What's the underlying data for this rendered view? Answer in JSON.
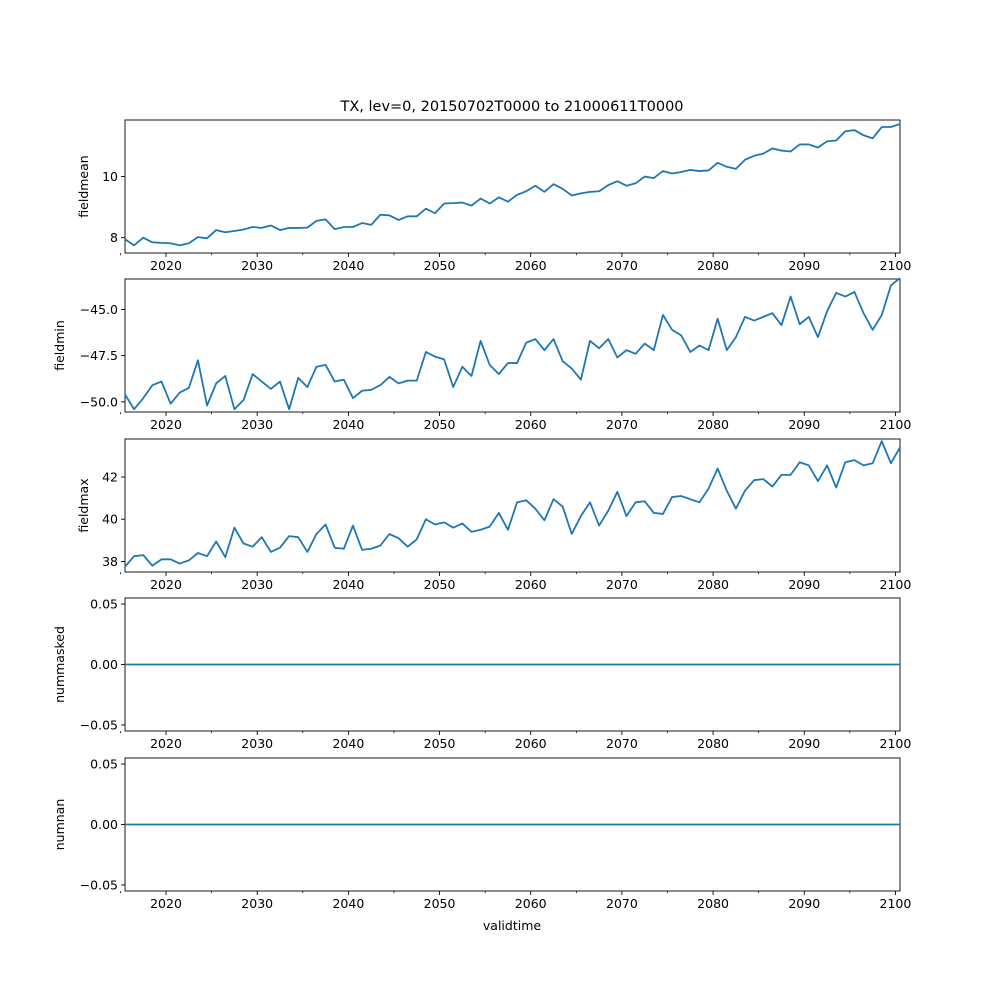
{
  "chart_data": {
    "type": "line",
    "title": "TX, lev=0, 20150702T0000 to 21000611T0000",
    "xlabel": "validtime",
    "xlim": [
      2015.5,
      2100.5
    ],
    "x_ticks": [
      2020,
      2030,
      2040,
      2050,
      2060,
      2070,
      2080,
      2090,
      2100
    ],
    "x_tick_labels": [
      "2020",
      "2030",
      "2040",
      "2050",
      "2060",
      "2070",
      "2080",
      "2090",
      "2100"
    ],
    "line_color": "#1f77b4",
    "x": [
      2015.5,
      2016.5,
      2017.5,
      2018.5,
      2019.5,
      2020.5,
      2021.5,
      2022.5,
      2023.5,
      2024.5,
      2025.5,
      2026.5,
      2027.5,
      2028.5,
      2029.5,
      2030.5,
      2031.5,
      2032.5,
      2033.5,
      2034.5,
      2035.5,
      2036.5,
      2037.5,
      2038.5,
      2039.5,
      2040.5,
      2041.5,
      2042.5,
      2043.5,
      2044.5,
      2045.5,
      2046.5,
      2047.5,
      2048.5,
      2049.5,
      2050.5,
      2051.5,
      2052.5,
      2053.5,
      2054.5,
      2055.5,
      2056.5,
      2057.5,
      2058.5,
      2059.5,
      2060.5,
      2061.5,
      2062.5,
      2063.5,
      2064.5,
      2065.5,
      2066.5,
      2067.5,
      2068.5,
      2069.5,
      2070.5,
      2071.5,
      2072.5,
      2073.5,
      2074.5,
      2075.5,
      2076.5,
      2077.5,
      2078.5,
      2079.5,
      2080.5,
      2081.5,
      2082.5,
      2083.5,
      2084.5,
      2085.5,
      2086.5,
      2087.5,
      2088.5,
      2089.5,
      2090.5,
      2091.5,
      2092.5,
      2093.5,
      2094.5,
      2095.5,
      2096.5,
      2097.5,
      2098.5,
      2099.5,
      2100.5
    ],
    "panels": [
      {
        "name": "fieldmean",
        "ylabel": "fieldmean",
        "ylim": [
          7.5,
          11.85
        ],
        "y_ticks": [
          8,
          10
        ],
        "y_tick_labels": [
          "8",
          "10"
        ],
        "values": [
          7.95,
          7.75,
          8.0,
          7.85,
          7.83,
          7.82,
          7.75,
          7.82,
          8.02,
          7.98,
          8.25,
          8.18,
          8.22,
          8.27,
          8.35,
          8.32,
          8.4,
          8.25,
          8.32,
          8.32,
          8.33,
          8.55,
          8.6,
          8.28,
          8.35,
          8.35,
          8.48,
          8.42,
          8.75,
          8.73,
          8.58,
          8.7,
          8.7,
          8.95,
          8.8,
          9.12,
          9.13,
          9.15,
          9.05,
          9.28,
          9.12,
          9.32,
          9.18,
          9.4,
          9.52,
          9.7,
          9.5,
          9.75,
          9.6,
          9.38,
          9.45,
          9.5,
          9.52,
          9.72,
          9.85,
          9.7,
          9.78,
          10.0,
          9.95,
          10.18,
          10.1,
          10.15,
          10.22,
          10.18,
          10.2,
          10.45,
          10.32,
          10.25,
          10.55,
          10.68,
          10.75,
          10.92,
          10.85,
          10.82,
          11.05,
          11.05,
          10.95,
          11.15,
          11.18,
          11.48,
          11.52,
          11.35,
          11.25,
          11.62,
          11.62,
          11.72
        ]
      },
      {
        "name": "fieldmin",
        "ylabel": "fieldmin",
        "ylim": [
          -50.55,
          -43.35
        ],
        "y_ticks": [
          -50.0,
          -47.5,
          -45.0
        ],
        "y_tick_labels": [
          "−50.0",
          "−47.5",
          "−45.0"
        ],
        "values": [
          -49.6,
          -50.4,
          -49.8,
          -49.1,
          -48.9,
          -50.1,
          -49.5,
          -49.25,
          -47.75,
          -50.2,
          -49.0,
          -48.6,
          -50.4,
          -49.9,
          -48.5,
          -48.9,
          -49.3,
          -48.9,
          -50.4,
          -48.7,
          -49.2,
          -48.1,
          -48.0,
          -48.9,
          -48.8,
          -49.8,
          -49.4,
          -49.35,
          -49.1,
          -48.65,
          -49.0,
          -48.85,
          -48.85,
          -47.3,
          -47.55,
          -47.7,
          -49.2,
          -48.1,
          -48.6,
          -46.7,
          -48.0,
          -48.5,
          -47.9,
          -47.9,
          -46.8,
          -46.6,
          -47.2,
          -46.6,
          -47.8,
          -48.2,
          -48.8,
          -46.7,
          -47.1,
          -46.6,
          -47.6,
          -47.2,
          -47.4,
          -46.85,
          -47.2,
          -45.3,
          -46.1,
          -46.4,
          -47.3,
          -46.95,
          -47.2,
          -45.5,
          -47.2,
          -46.5,
          -45.4,
          -45.6,
          -45.4,
          -45.2,
          -45.85,
          -44.3,
          -45.8,
          -45.4,
          -46.5,
          -45.1,
          -44.1,
          -44.3,
          -44.05,
          -45.2,
          -46.1,
          -45.3,
          -43.7,
          -43.3
        ]
      },
      {
        "name": "fieldmax",
        "ylabel": "fieldmax",
        "ylim": [
          37.5,
          43.8
        ],
        "y_ticks": [
          38,
          40,
          42
        ],
        "y_tick_labels": [
          "38",
          "40",
          "42"
        ],
        "values": [
          37.75,
          38.25,
          38.3,
          37.8,
          38.1,
          38.1,
          37.9,
          38.05,
          38.4,
          38.25,
          38.95,
          38.2,
          39.6,
          38.85,
          38.7,
          39.15,
          38.45,
          38.65,
          39.2,
          39.15,
          38.45,
          39.3,
          39.75,
          38.65,
          38.6,
          39.7,
          38.55,
          38.6,
          38.75,
          39.3,
          39.1,
          38.7,
          39.05,
          40.0,
          39.75,
          39.85,
          39.6,
          39.8,
          39.4,
          39.5,
          39.65,
          40.3,
          39.5,
          40.8,
          40.9,
          40.5,
          39.95,
          40.95,
          40.6,
          39.3,
          40.15,
          40.8,
          39.7,
          40.4,
          41.3,
          40.15,
          40.8,
          40.85,
          40.3,
          40.25,
          41.05,
          41.1,
          40.95,
          40.8,
          41.45,
          42.4,
          41.35,
          40.5,
          41.35,
          41.85,
          41.9,
          41.55,
          42.1,
          42.1,
          42.7,
          42.55,
          41.8,
          42.55,
          41.5,
          42.7,
          42.8,
          42.55,
          42.65,
          43.7,
          42.65,
          43.4
        ]
      },
      {
        "name": "nummasked",
        "ylabel": "nummasked",
        "ylim": [
          -0.055,
          0.055
        ],
        "y_ticks": [
          -0.05,
          0.0,
          0.05
        ],
        "y_tick_labels": [
          "−0.05",
          "0.00",
          "0.05"
        ],
        "values": "all 0"
      },
      {
        "name": "numnan",
        "ylabel": "numnan",
        "ylim": [
          -0.055,
          0.055
        ],
        "y_ticks": [
          -0.05,
          0.0,
          0.05
        ],
        "y_tick_labels": [
          "−0.05",
          "0.00",
          "0.05"
        ],
        "values": "all 0"
      }
    ]
  }
}
